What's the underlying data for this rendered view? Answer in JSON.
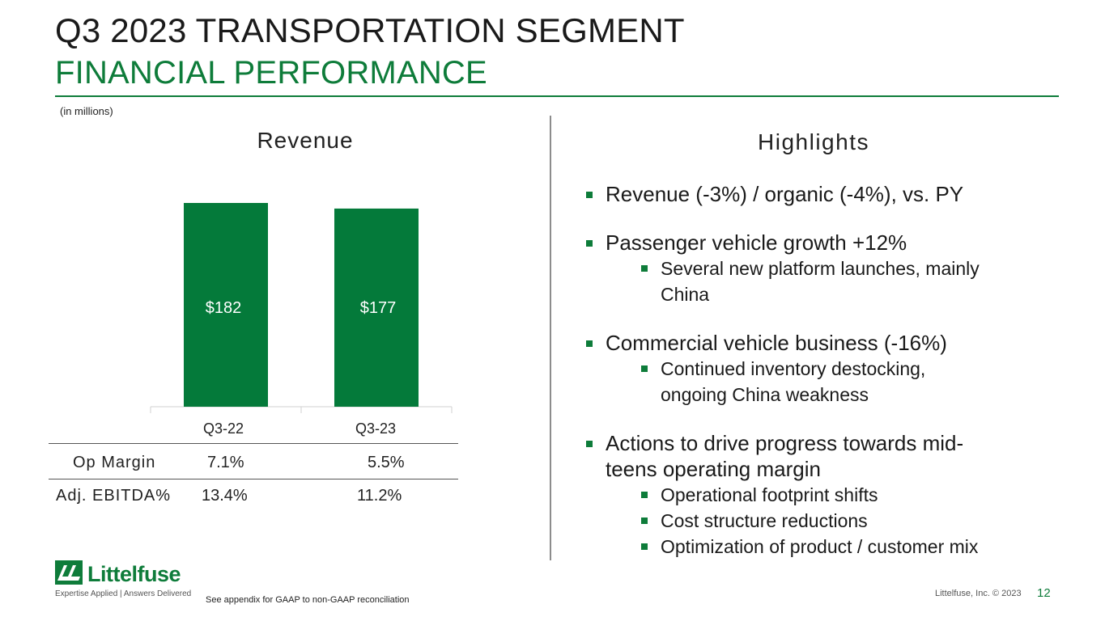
{
  "header": {
    "title": "Q3 2023 TRANSPORTATION SEGMENT",
    "subtitle": "FINANCIAL PERFORMANCE",
    "units_note": "(in millions)"
  },
  "colors": {
    "brand_green": "#0e7c3a",
    "bar_green": "#047a3a"
  },
  "chart_data": {
    "type": "bar",
    "title": "Revenue",
    "categories": [
      "Q3-22",
      "Q3-23"
    ],
    "values": [
      182,
      177
    ],
    "data_labels": [
      "$182",
      "$177"
    ],
    "ylim": [
      0,
      182
    ],
    "xlabel": "",
    "ylabel": "",
    "grid": false
  },
  "metrics": {
    "rows": [
      {
        "label": "Op Margin",
        "values": [
          "7.1%",
          "5.5%"
        ]
      },
      {
        "label": "Adj. EBITDA%",
        "values": [
          "13.4%",
          "11.2%"
        ]
      }
    ]
  },
  "highlights": {
    "title": "Highlights",
    "l1": "Revenue (-3%) / organic (-4%), vs. PY",
    "l2": "Passenger vehicle growth +12%",
    "l2a1": "Several new platform launches, mainly",
    "l2a2": "China",
    "l3": "Commercial vehicle business (-16%)",
    "l3a1": "Continued inventory destocking,",
    "l3a2": "ongoing China weakness",
    "l4a": "Actions to drive progress towards mid-",
    "l4b": "teens operating margin",
    "l4s1": "Operational footprint shifts",
    "l4s2": "Cost structure reductions",
    "l4s3": "Optimization of product / customer mix"
  },
  "footer": {
    "logo_text": "Littelfuse",
    "tagline": "Expertise Applied | Answers Delivered",
    "footnote": "See appendix for GAAP to non-GAAP reconciliation",
    "copyright": "Littelfuse, Inc. © 2023",
    "page_number": "12"
  }
}
